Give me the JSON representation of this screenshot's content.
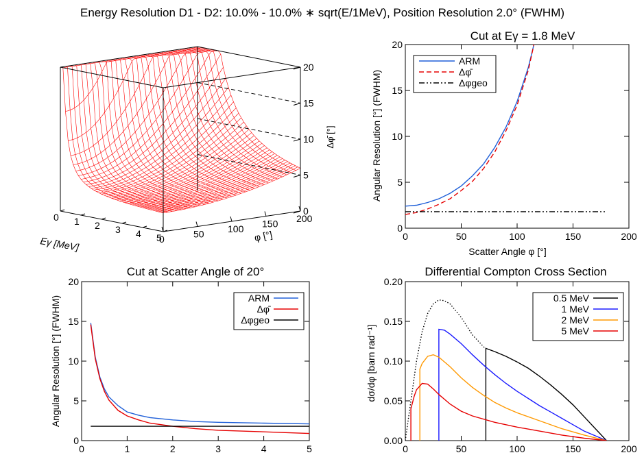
{
  "figure": {
    "title": "Energy Resolution D1 - D2: 10.0% - 10.0% ∗ sqrt(E/1MeV), Position Resolution 2.0° (FWHM)"
  },
  "chart_data": [
    {
      "id": "surface",
      "type": "surface3d",
      "title": "",
      "xlabel": "Eγ [MeV]",
      "ylabel": "φ [°]",
      "zlabel": "Δφ̄ [°]",
      "x_ticks": [
        "0",
        "1",
        "2",
        "3",
        "4",
        "5"
      ],
      "y_ticks": [
        "0",
        "50",
        "100",
        "150",
        "200"
      ],
      "z_ticks": [
        "0",
        "5",
        "10",
        "15",
        "20"
      ],
      "xlim": [
        0,
        5
      ],
      "ylim": [
        0,
        200
      ],
      "zlim": [
        0,
        20
      ],
      "surface_color": "#ff0000",
      "grid": true
    },
    {
      "id": "cut_energy",
      "type": "line",
      "title": "Cut at Eγ = 1.8 MeV",
      "xlabel": "Scatter Angle φ [°]",
      "ylabel": "Angular Resolution [°] (FWHM)",
      "xlim": [
        0,
        200
      ],
      "ylim": [
        0,
        20
      ],
      "x_ticks": [
        "0",
        "50",
        "100",
        "150",
        "200"
      ],
      "y_ticks": [
        "0",
        "5",
        "10",
        "15",
        "20"
      ],
      "legend_position": "top-left",
      "series": [
        {
          "name": "ARM",
          "color": "#1f5fd8",
          "dash": "solid",
          "x": [
            0,
            10,
            20,
            30,
            40,
            50,
            60,
            70,
            80,
            90,
            100,
            110,
            115
          ],
          "y": [
            2.4,
            2.5,
            2.8,
            3.2,
            3.8,
            4.6,
            5.7,
            7.0,
            8.8,
            11.0,
            13.8,
            17.5,
            20
          ]
        },
        {
          "name": "Δφ̄",
          "color": "#e60000",
          "dash": "dashed",
          "x": [
            0,
            10,
            20,
            30,
            40,
            50,
            60,
            70,
            80,
            90,
            100,
            110,
            115
          ],
          "y": [
            1.5,
            1.7,
            2.1,
            2.6,
            3.2,
            4.1,
            5.1,
            6.5,
            8.3,
            10.6,
            13.4,
            17.2,
            20
          ]
        },
        {
          "name": "Δφgeo",
          "color": "#000000",
          "dash": "dashdotdot",
          "x": [
            0,
            180
          ],
          "y": [
            1.8,
            1.8
          ]
        }
      ]
    },
    {
      "id": "cut_angle",
      "type": "line",
      "title": "Cut at Scatter Angle of 20°",
      "xlabel": "",
      "ylabel": "Angular Resolution [°] (FWHM)",
      "xlim": [
        0,
        5
      ],
      "ylim": [
        0,
        20
      ],
      "x_ticks": [
        "0",
        "1",
        "2",
        "3",
        "4",
        "5"
      ],
      "y_ticks": [
        "0",
        "5",
        "10",
        "15",
        "20"
      ],
      "legend_position": "top-right",
      "series": [
        {
          "name": "ARM",
          "color": "#1f5fd8",
          "dash": "solid",
          "x": [
            0.2,
            0.3,
            0.4,
            0.5,
            0.6,
            0.8,
            1.0,
            1.25,
            1.5,
            2.0,
            2.5,
            3.0,
            4.0,
            5.0
          ],
          "y": [
            14.8,
            10.5,
            8.0,
            6.5,
            5.5,
            4.4,
            3.6,
            3.2,
            2.9,
            2.6,
            2.4,
            2.3,
            2.2,
            2.1
          ]
        },
        {
          "name": "Δφ̄",
          "color": "#e60000",
          "dash": "solid",
          "x": [
            0.2,
            0.3,
            0.4,
            0.5,
            0.6,
            0.8,
            1.0,
            1.25,
            1.5,
            2.0,
            2.5,
            3.0,
            4.0,
            5.0
          ],
          "y": [
            14.6,
            10.3,
            7.8,
            6.2,
            5.1,
            3.8,
            3.1,
            2.6,
            2.2,
            1.8,
            1.5,
            1.3,
            1.1,
            0.9
          ]
        },
        {
          "name": "Δφgeo",
          "color": "#000000",
          "dash": "solid",
          "x": [
            0.2,
            5.0
          ],
          "y": [
            1.8,
            1.8
          ]
        }
      ]
    },
    {
      "id": "cross_section",
      "type": "line",
      "title": "Differential Compton Cross Section",
      "xlabel": "",
      "ylabel": "dσ/dφ [barn rad⁻¹]",
      "xlim": [
        0,
        200
      ],
      "ylim": [
        0,
        0.2
      ],
      "x_ticks": [
        "0",
        "50",
        "100",
        "150",
        "200"
      ],
      "y_ticks": [
        "0.00",
        "0.05",
        "0.10",
        "0.15",
        "0.20"
      ],
      "legend_position": "top-right",
      "envelope": {
        "color": "#000000",
        "dash": "dotted",
        "x": [
          0,
          5,
          10,
          15,
          20,
          25,
          30,
          35,
          40,
          50,
          60,
          70,
          72
        ],
        "y": [
          0.0,
          0.05,
          0.1,
          0.137,
          0.16,
          0.172,
          0.177,
          0.176,
          0.172,
          0.155,
          0.133,
          0.118,
          0.116
        ]
      },
      "series": [
        {
          "name": "0.5 MeV",
          "color": "#000000",
          "dash": "solid",
          "x": [
            72,
            72,
            80,
            90,
            100,
            110,
            120,
            130,
            140,
            150,
            160,
            170,
            180
          ],
          "y": [
            0.0,
            0.116,
            0.112,
            0.106,
            0.099,
            0.091,
            0.081,
            0.07,
            0.058,
            0.045,
            0.03,
            0.015,
            0.0
          ]
        },
        {
          "name": "1 MeV",
          "color": "#1a1aff",
          "dash": "solid",
          "x": [
            30,
            30,
            35,
            40,
            50,
            60,
            70,
            80,
            90,
            100,
            110,
            120,
            130,
            140,
            150,
            160,
            170,
            180
          ],
          "y": [
            0.0,
            0.14,
            0.139,
            0.134,
            0.122,
            0.108,
            0.095,
            0.083,
            0.072,
            0.062,
            0.053,
            0.044,
            0.036,
            0.028,
            0.02,
            0.012,
            0.006,
            0.0
          ]
        },
        {
          "name": "2 MeV",
          "color": "#ff9900",
          "dash": "solid",
          "x": [
            13,
            13,
            15,
            20,
            25,
            30,
            40,
            50,
            60,
            70,
            80,
            90,
            100,
            120,
            140,
            160,
            180
          ],
          "y": [
            0.0,
            0.09,
            0.097,
            0.106,
            0.108,
            0.105,
            0.093,
            0.079,
            0.067,
            0.057,
            0.048,
            0.041,
            0.035,
            0.025,
            0.015,
            0.007,
            0.0
          ]
        },
        {
          "name": "5 MeV",
          "color": "#e60000",
          "dash": "solid",
          "x": [
            5,
            5,
            8,
            10,
            15,
            20,
            25,
            30,
            40,
            50,
            60,
            80,
            100,
            120,
            140,
            160,
            180
          ],
          "y": [
            0.0,
            0.04,
            0.056,
            0.064,
            0.072,
            0.071,
            0.065,
            0.058,
            0.046,
            0.037,
            0.031,
            0.023,
            0.017,
            0.012,
            0.007,
            0.003,
            0.0
          ]
        }
      ]
    }
  ]
}
